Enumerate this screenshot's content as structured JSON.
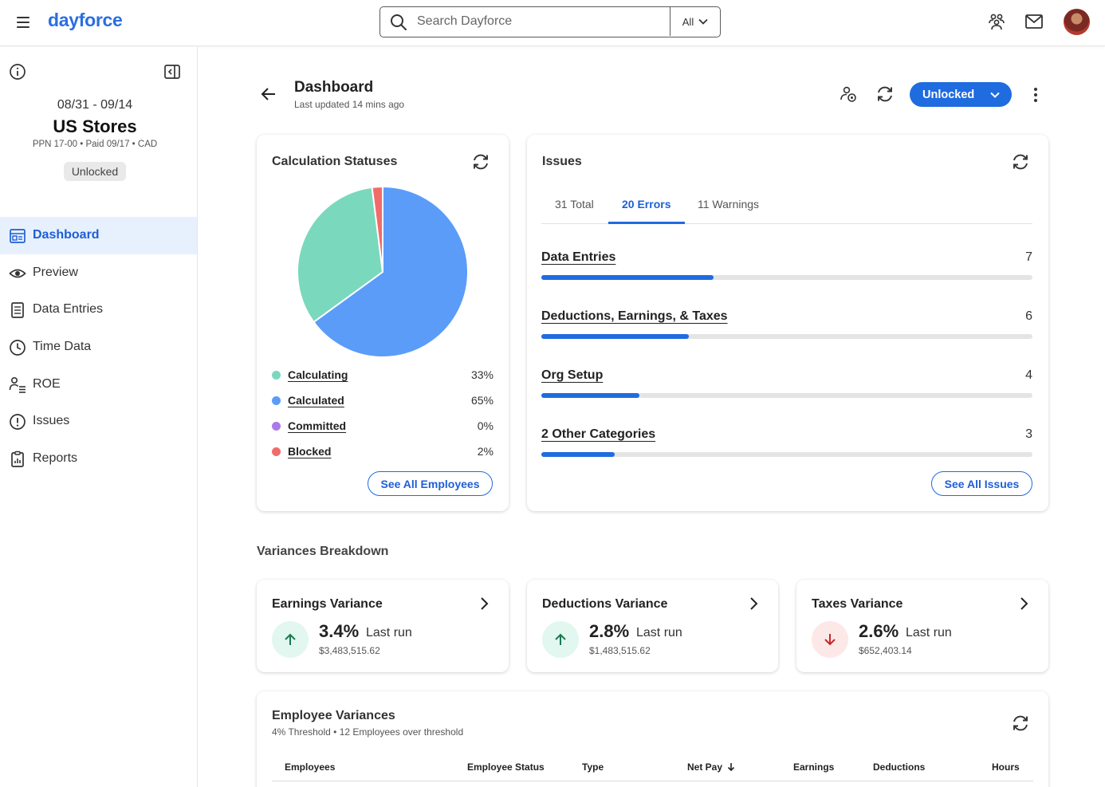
{
  "header": {
    "logo": "dayforce",
    "search_placeholder": "Search Dayforce",
    "search_scope": "All",
    "icons": [
      "menu-icon",
      "people-icon",
      "mail-icon",
      "avatar"
    ]
  },
  "sidebar": {
    "period": "08/31 - 09/14",
    "store": "US Stores",
    "meta": "PPN 17-00 • Paid 09/17 • CAD",
    "status": "Unlocked",
    "items": [
      {
        "label": "Dashboard",
        "icon": "dashboard-icon",
        "active": true
      },
      {
        "label": "Preview",
        "icon": "eye-icon",
        "active": false
      },
      {
        "label": "Data Entries",
        "icon": "document-icon",
        "active": false
      },
      {
        "label": "Time Data",
        "icon": "clock-icon",
        "active": false
      },
      {
        "label": "ROE",
        "icon": "person-list-icon",
        "active": false
      },
      {
        "label": "Issues",
        "icon": "alert-icon",
        "active": false
      },
      {
        "label": "Reports",
        "icon": "clipboard-icon",
        "active": false
      }
    ]
  },
  "page": {
    "title": "Dashboard",
    "subtitle": "Last updated 14 mins ago",
    "status_button": "Unlocked"
  },
  "calc_card": {
    "title": "Calculation Statuses",
    "button": "See All Employees"
  },
  "chart_data": {
    "type": "pie",
    "title": "Calculation Statuses",
    "slices": [
      {
        "label": "Calculating",
        "value": 33,
        "display": "33%",
        "color": "#7ad8bd"
      },
      {
        "label": "Calculated",
        "value": 65,
        "display": "65%",
        "color": "#5b9cf8"
      },
      {
        "label": "Committed",
        "value": 0,
        "display": "0%",
        "color": "#a97ae8"
      },
      {
        "label": "Blocked",
        "value": 2,
        "display": "2%",
        "color": "#f26b6b"
      }
    ]
  },
  "issues_card": {
    "title": "Issues",
    "tabs": [
      "31 Total",
      "20 Errors",
      "11 Warnings"
    ],
    "active_tab": 1,
    "rows": [
      {
        "label": "Data Entries",
        "count": "7",
        "fraction": 0.35
      },
      {
        "label": "Deductions, Earnings, & Taxes",
        "count": "6",
        "fraction": 0.3
      },
      {
        "label": "Org Setup",
        "count": "4",
        "fraction": 0.2
      },
      {
        "label": "2 Other Categories",
        "count": "3",
        "fraction": 0.15
      }
    ],
    "button": "See All Issues"
  },
  "variances": {
    "title": "Variances Breakdown",
    "cards": [
      {
        "title": "Earnings Variance",
        "pct": "3.4%",
        "last": "Last run",
        "amount": "$3,483,515.62",
        "direction": "up"
      },
      {
        "title": "Deductions Variance",
        "pct": "2.8%",
        "last": "Last run",
        "amount": "$1,483,515.62",
        "direction": "up"
      },
      {
        "title": "Taxes Variance",
        "pct": "2.6%",
        "last": "Last run",
        "amount": "$652,403.14",
        "direction": "down"
      }
    ]
  },
  "employee_variances": {
    "title": "Employee Variances",
    "subtitle": "4% Threshold • 12 Employees over threshold",
    "columns": [
      "Employees",
      "Employee Status",
      "Type",
      "Net Pay",
      "Earnings",
      "Deductions",
      "Hours"
    ]
  },
  "colors": {
    "accent": "#1f6be0",
    "active_nav_bg": "#e7f1fd",
    "up_bg": "#e2f7ef",
    "up_fg": "#1a7a52",
    "down_bg": "#fde8e8",
    "down_fg": "#c62828"
  }
}
